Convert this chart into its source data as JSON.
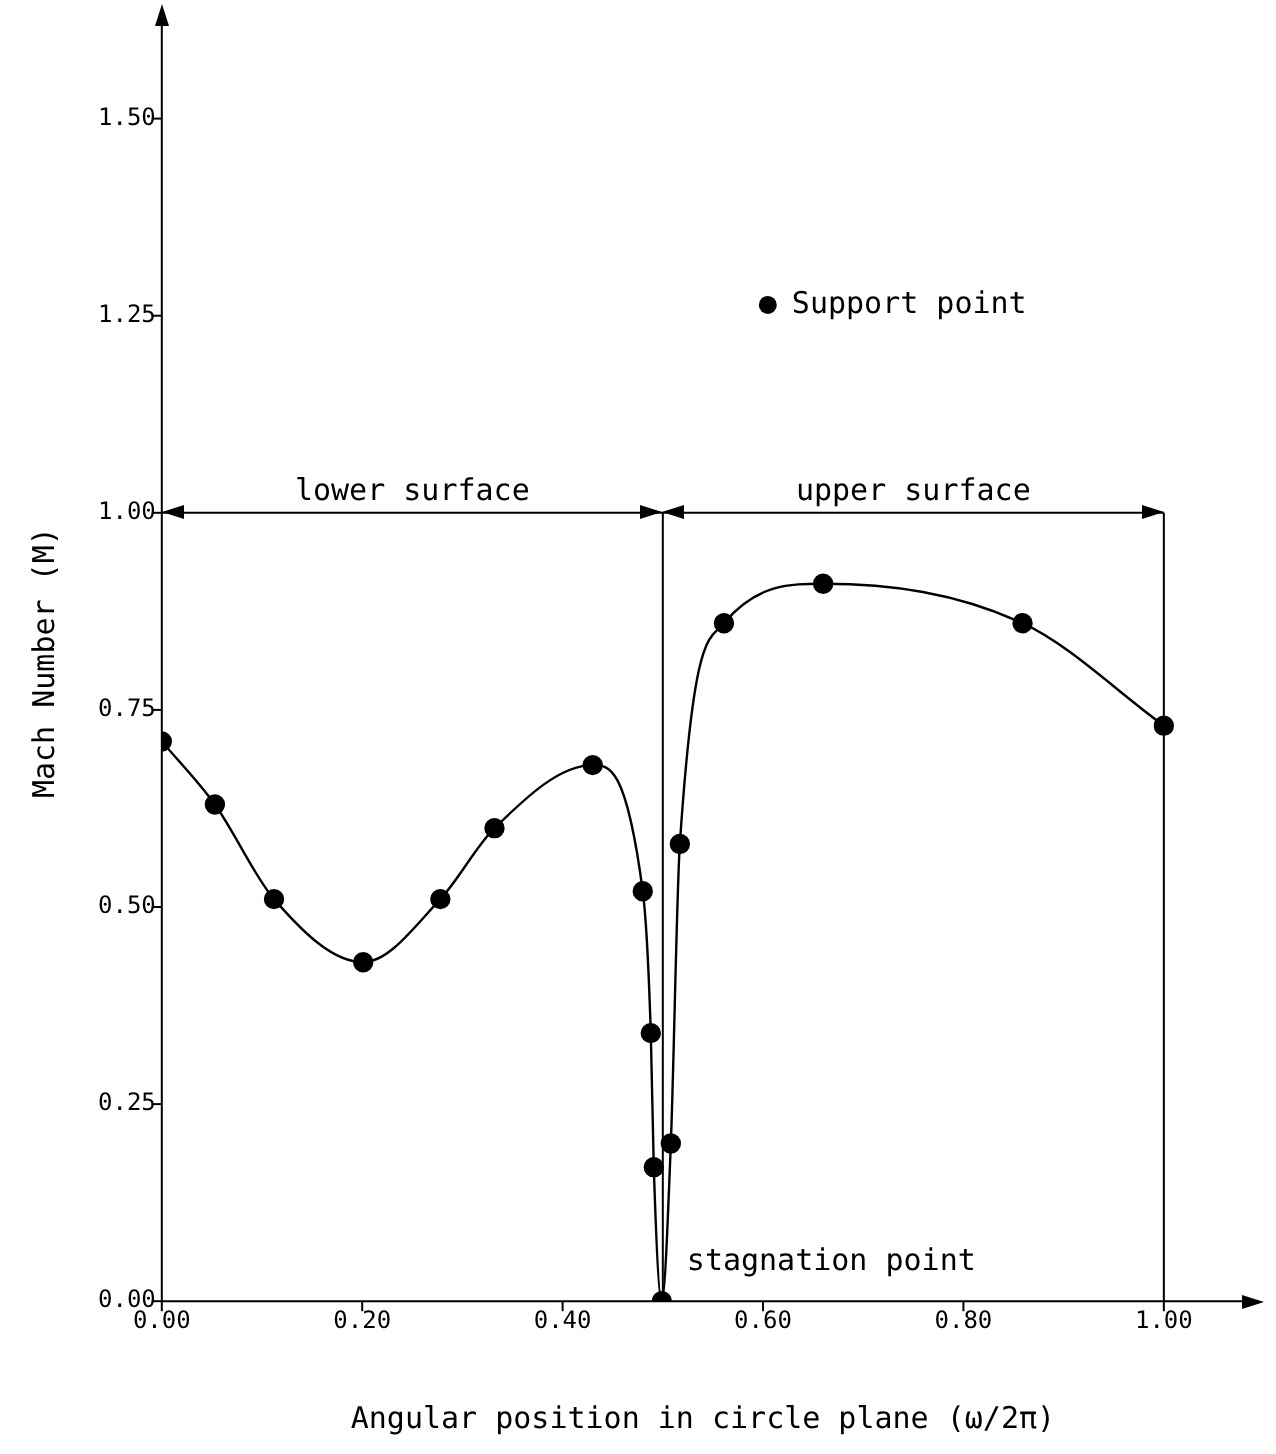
{
  "chart_data": {
    "type": "line",
    "xlabel": "Angular position in circle plane (ω/2π)",
    "ylabel": "Mach Number (M)",
    "x": [
      0,
      0.053,
      0.112,
      0.201,
      0.278,
      0.332,
      0.43,
      0.48,
      0.488,
      0.491,
      0.499,
      0.508,
      0.517,
      0.561,
      0.66,
      0.859,
      1.0
    ],
    "series": [
      {
        "name": "Support point",
        "color": "#000000",
        "values": [
          0.71,
          0.63,
          0.51,
          0.43,
          0.51,
          0.6,
          0.68,
          0.52,
          0.34,
          0.17,
          0,
          0.2,
          0.58,
          0.86,
          0.91,
          0.86,
          0.73
        ]
      }
    ],
    "xlim": [
      0,
      1.08
    ],
    "ylim": [
      0,
      1.62
    ],
    "xticks": [
      {
        "value": 0,
        "label": "0.00"
      },
      {
        "value": 0.2,
        "label": "0.20"
      },
      {
        "value": 0.4,
        "label": "0.40"
      },
      {
        "value": 0.6,
        "label": "0.60"
      },
      {
        "value": 0.8,
        "label": "0.80"
      },
      {
        "value": 1,
        "label": "1.00"
      }
    ],
    "yticks": [
      {
        "value": 0,
        "label": "0.00"
      },
      {
        "value": 0.25,
        "label": "0.25"
      },
      {
        "value": 0.5,
        "label": "0.50"
      },
      {
        "value": 0.75,
        "label": "0.75"
      },
      {
        "value": 1,
        "label": "1.00"
      },
      {
        "value": 1.25,
        "label": "1.25"
      },
      {
        "value": 1.5,
        "label": "1.50"
      }
    ],
    "ref_lines": [
      {
        "axis": "x",
        "value": 0.5
      },
      {
        "axis": "x",
        "value": 1.0
      },
      {
        "axis": "y",
        "value": 1.0
      }
    ],
    "annotations": [
      "lower surface",
      "upper surface",
      {
        "text": "stagnation point",
        "x": 0.5,
        "y": 0
      }
    ],
    "grid": false,
    "legend": "top right",
    "marker": "circle",
    "line_style": "solid"
  }
}
